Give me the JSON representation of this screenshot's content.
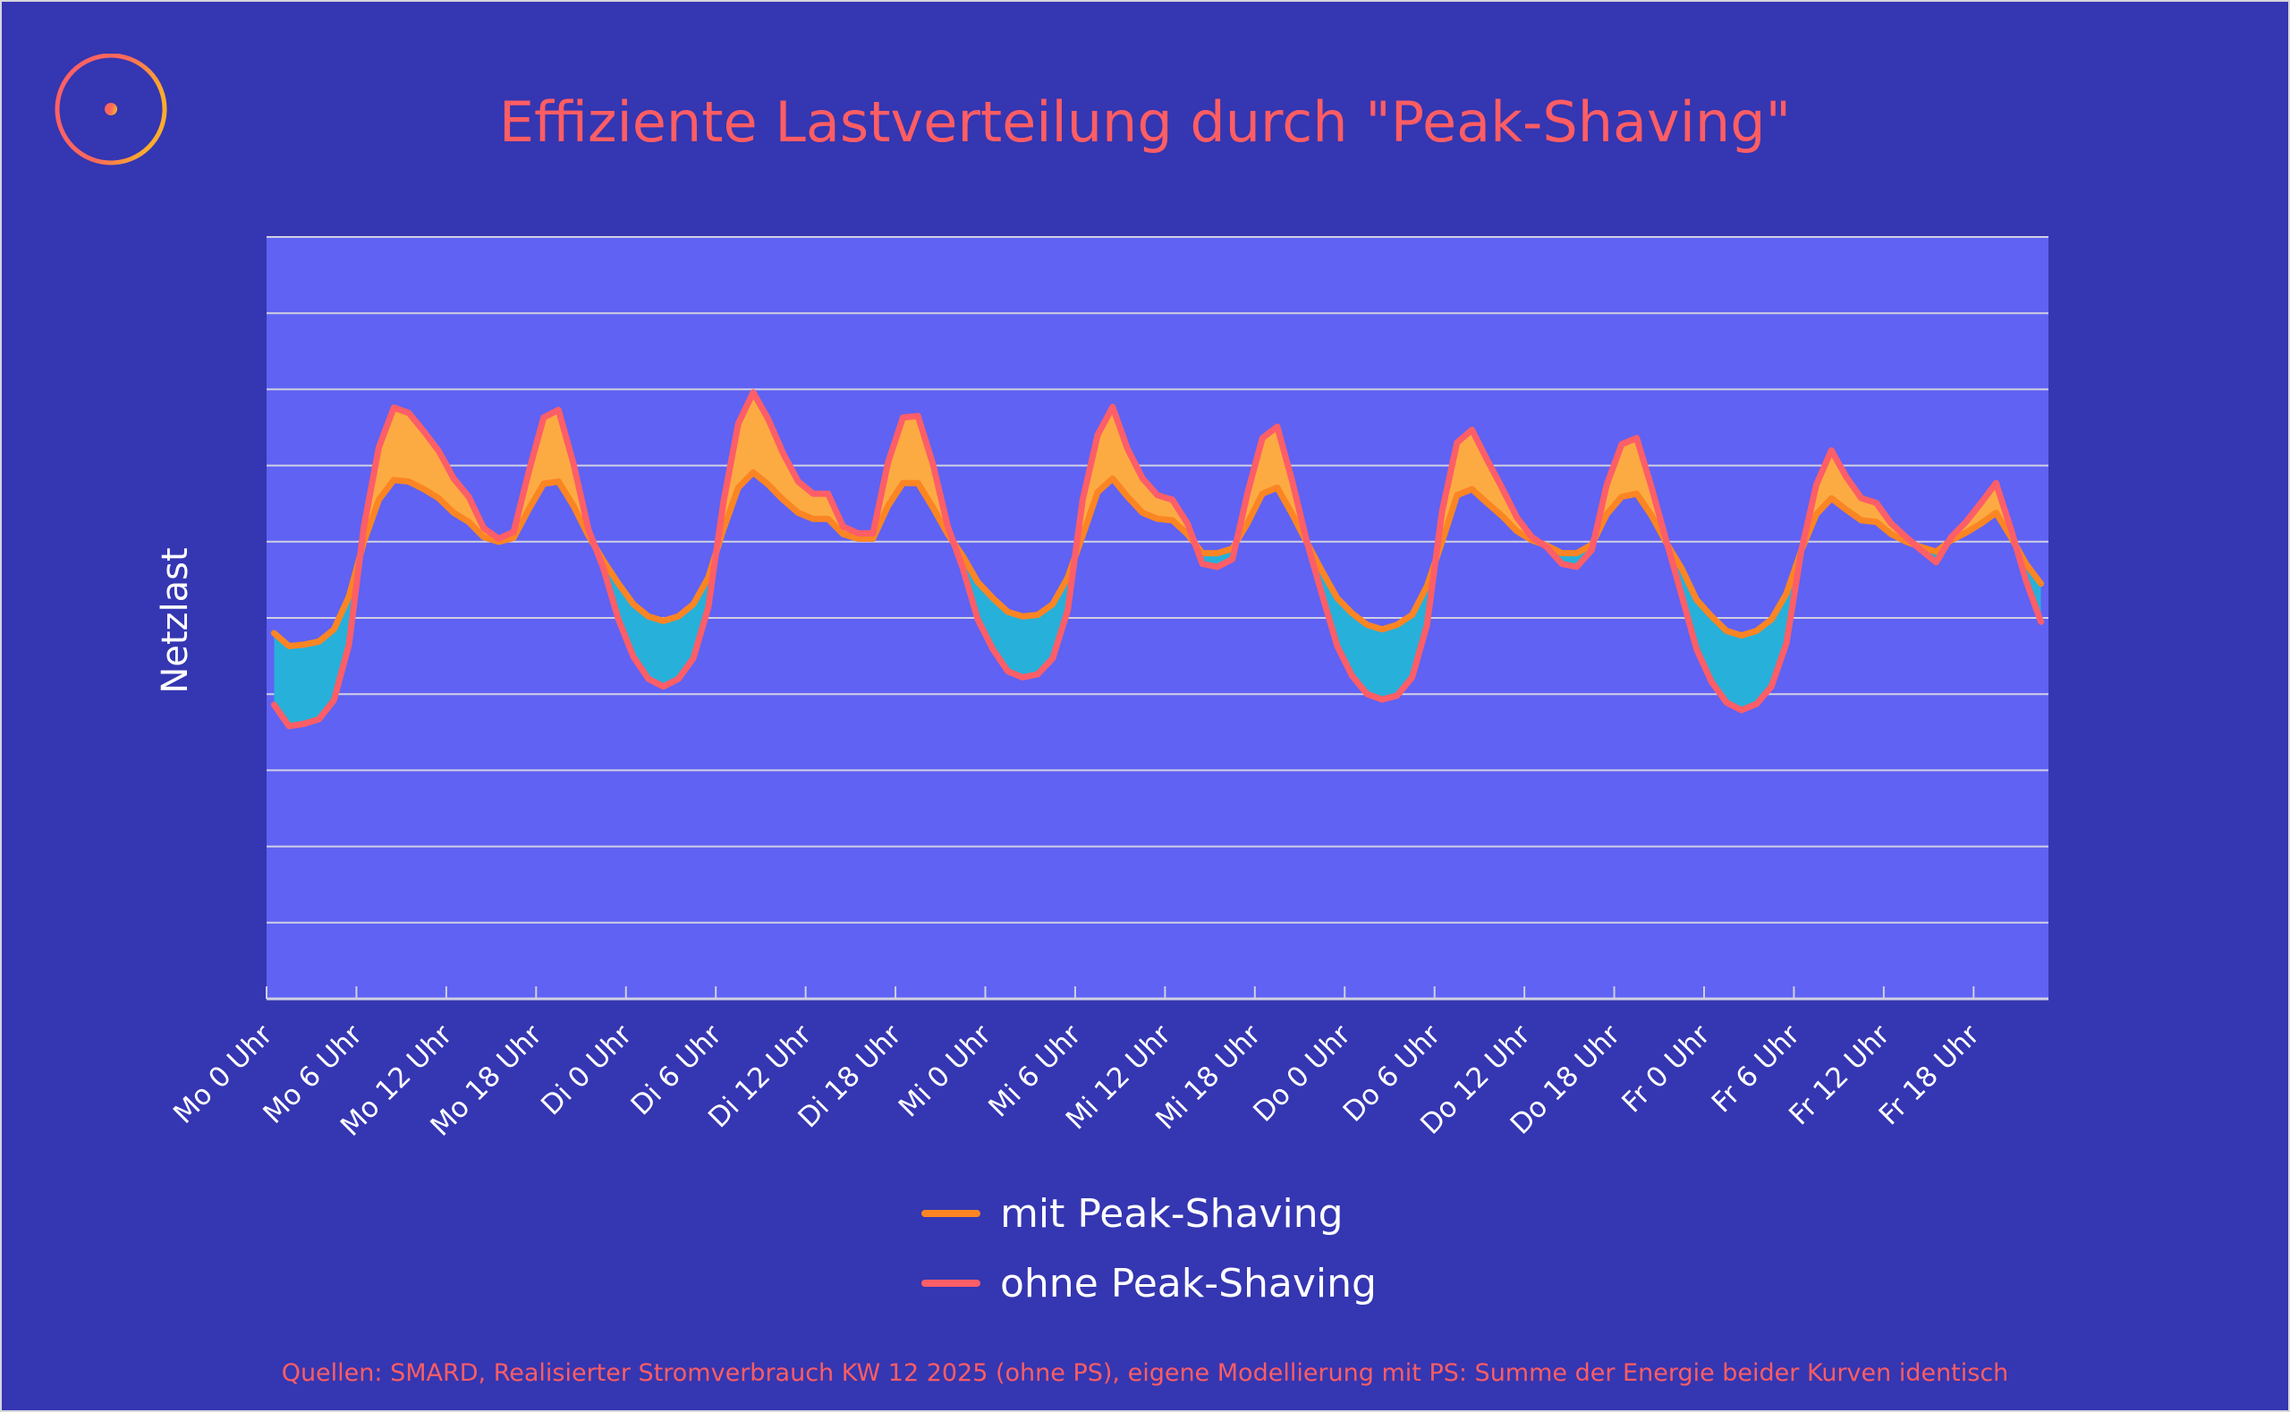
{
  "title": "Effiziente Lastverteilung durch \"Peak-Shaving\"",
  "footer": "Quellen: SMARD, Realisierter Stromverbrauch KW 12 2025 (ohne PS), eigene Modellierung mit PS: Summe der Energie beider Kurven identisch",
  "colors": {
    "background": "#3536b1",
    "plot_background": "#5f62f2",
    "grid": "#d0d0e4",
    "mit": "#fb8523",
    "ohne": "#fd5e67",
    "fill_peak": "#fcab43",
    "fill_valley": "#27b0da",
    "title": "#ff5d63"
  },
  "chart_data": {
    "type": "area",
    "title": "Effiziente Lastverteilung durch \"Peak-Shaving\"",
    "xlabel": "",
    "ylabel": "Netzlast",
    "x_unit": "hours since Mo 0 Uhr",
    "x_start": 0.5,
    "x_step": 1,
    "xlim": [
      0,
      119
    ],
    "ylim": [
      0,
      10
    ],
    "y_tick_labels_shown": false,
    "grid": true,
    "legend_position": "bottom-center",
    "x_ticks": [
      0,
      6,
      12,
      18,
      24,
      30,
      36,
      42,
      48,
      54,
      60,
      66,
      72,
      78,
      84,
      90,
      96,
      102,
      108,
      114
    ],
    "x_tick_labels": [
      "Mo 0 Uhr",
      "Mo 6 Uhr",
      "Mo 12 Uhr",
      "Mo 18 Uhr",
      "Di 0 Uhr",
      "Di 6 Uhr",
      "Di 12 Uhr",
      "Di 18 Uhr",
      "Mi 0 Uhr",
      "Mi 6 Uhr",
      "Mi 12 Uhr",
      "Mi 18 Uhr",
      "Do 0 Uhr",
      "Do 6 Uhr",
      "Do 12 Uhr",
      "Do 18 Uhr",
      "Fr 0 Uhr",
      "Fr 6 Uhr",
      "Fr 12 Uhr",
      "Fr 18 Uhr"
    ],
    "series": [
      {
        "name": "mit Peak-Shaving",
        "key": "mit",
        "values": [
          4.8,
          4.63,
          4.65,
          4.69,
          4.85,
          5.28,
          6.0,
          6.55,
          6.81,
          6.79,
          6.69,
          6.57,
          6.38,
          6.26,
          6.06,
          6.0,
          6.05,
          6.42,
          6.76,
          6.79,
          6.47,
          6.08,
          5.75,
          5.45,
          5.18,
          5.02,
          4.96,
          5.02,
          5.18,
          5.53,
          6.16,
          6.71,
          6.91,
          6.75,
          6.55,
          6.38,
          6.3,
          6.3,
          6.1,
          6.04,
          6.04,
          6.47,
          6.77,
          6.77,
          6.45,
          6.1,
          5.81,
          5.47,
          5.26,
          5.08,
          5.02,
          5.04,
          5.18,
          5.53,
          6.08,
          6.65,
          6.83,
          6.59,
          6.38,
          6.3,
          6.28,
          6.1,
          5.85,
          5.85,
          5.91,
          6.24,
          6.63,
          6.71,
          6.36,
          5.98,
          5.61,
          5.26,
          5.06,
          4.91,
          4.85,
          4.91,
          5.04,
          5.42,
          6.0,
          6.61,
          6.69,
          6.51,
          6.34,
          6.14,
          6.02,
          5.95,
          5.85,
          5.85,
          5.96,
          6.36,
          6.59,
          6.63,
          6.34,
          5.98,
          5.65,
          5.24,
          5.02,
          4.83,
          4.77,
          4.83,
          4.98,
          5.32,
          5.89,
          6.36,
          6.57,
          6.42,
          6.28,
          6.26,
          6.1,
          6.0,
          5.93,
          5.87,
          6.02,
          6.12,
          6.24,
          6.38,
          6.06,
          5.71,
          5.45
        ]
      },
      {
        "name": "ohne Peak-Shaving",
        "key": "ohne",
        "values": [
          3.86,
          3.58,
          3.61,
          3.67,
          3.92,
          4.65,
          6.2,
          7.24,
          7.76,
          7.69,
          7.45,
          7.19,
          6.83,
          6.59,
          6.18,
          6.04,
          6.13,
          6.91,
          7.63,
          7.73,
          7.02,
          6.16,
          5.65,
          4.98,
          4.49,
          4.2,
          4.1,
          4.2,
          4.47,
          5.14,
          6.51,
          7.55,
          7.96,
          7.61,
          7.16,
          6.79,
          6.63,
          6.63,
          6.2,
          6.11,
          6.11,
          7.04,
          7.63,
          7.65,
          7.02,
          6.2,
          5.65,
          4.98,
          4.59,
          4.3,
          4.22,
          4.26,
          4.47,
          5.1,
          6.55,
          7.4,
          7.77,
          7.22,
          6.83,
          6.61,
          6.55,
          6.24,
          5.71,
          5.67,
          5.77,
          6.63,
          7.36,
          7.51,
          6.79,
          5.98,
          5.3,
          4.63,
          4.24,
          4.0,
          3.93,
          3.98,
          4.22,
          4.91,
          6.4,
          7.3,
          7.47,
          7.08,
          6.71,
          6.32,
          6.06,
          5.93,
          5.71,
          5.67,
          5.89,
          6.75,
          7.28,
          7.36,
          6.71,
          6.0,
          5.3,
          4.59,
          4.16,
          3.89,
          3.79,
          3.87,
          4.1,
          4.67,
          5.89,
          6.75,
          7.2,
          6.85,
          6.57,
          6.51,
          6.24,
          6.06,
          5.89,
          5.73,
          6.06,
          6.26,
          6.51,
          6.77,
          6.16,
          5.49,
          4.95
        ]
      }
    ]
  },
  "legend": [
    {
      "label": "mit Peak-Shaving",
      "color": "#fb8523"
    },
    {
      "label": "ohne Peak-Shaving",
      "color": "#fd5e67"
    }
  ]
}
